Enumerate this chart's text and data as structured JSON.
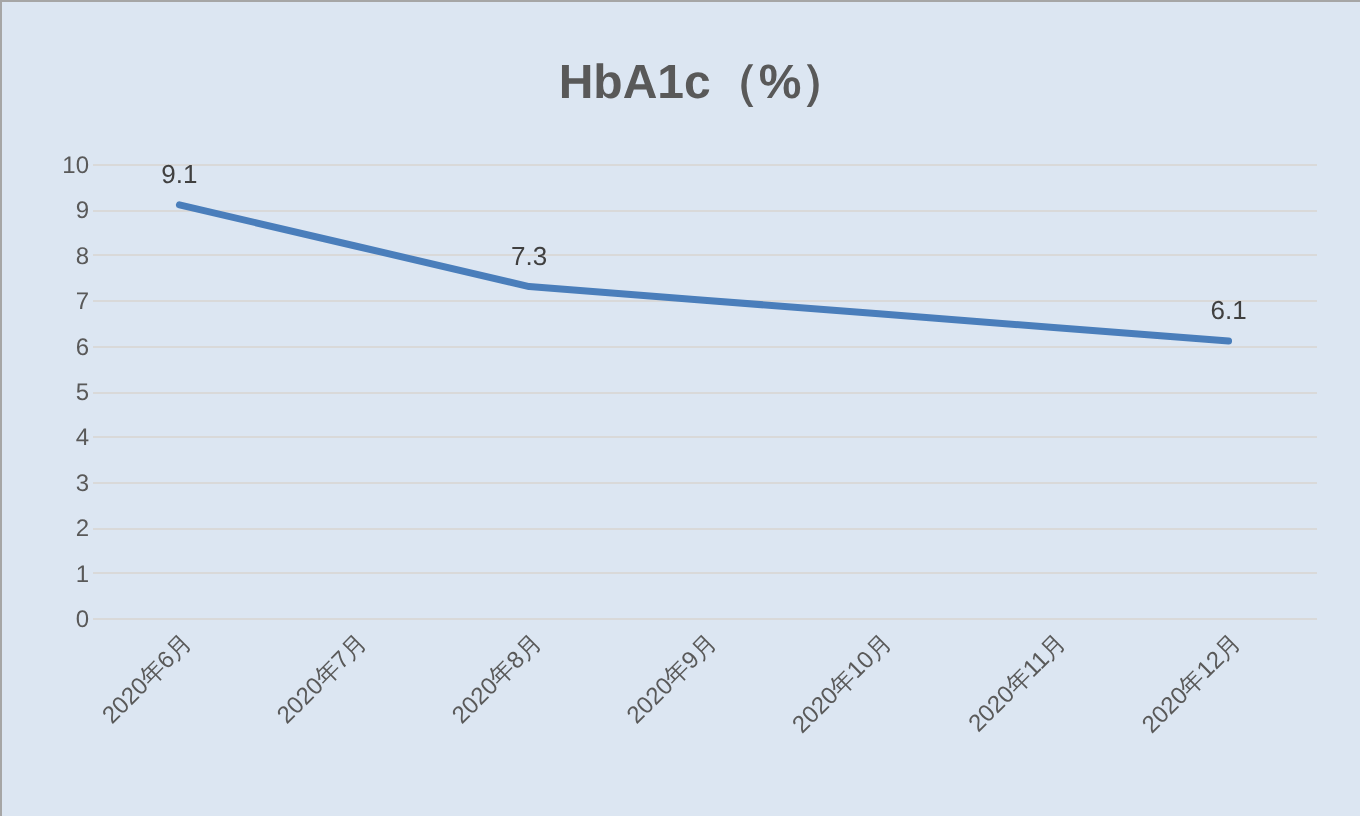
{
  "chart_data": {
    "type": "line",
    "title": "HbA1c（%）",
    "categories": [
      "2020年6月",
      "2020年7月",
      "2020年8月",
      "2020年9月",
      "2020年10月",
      "2020年11月",
      "2020年12月"
    ],
    "series": [
      {
        "color": "#4a7ebb",
        "values": [
          9.1,
          8.2,
          7.3,
          7.0,
          6.7,
          6.4,
          6.1
        ],
        "value_labels": [
          "9.1",
          null,
          "7.3",
          null,
          null,
          null,
          "6.1"
        ]
      }
    ],
    "ylim": [
      0,
      10
    ],
    "yticks": [
      0,
      1,
      2,
      3,
      4,
      5,
      6,
      7,
      8,
      9,
      10
    ],
    "grid": "y",
    "legend": false,
    "marker": "none",
    "line_style": "solid"
  }
}
